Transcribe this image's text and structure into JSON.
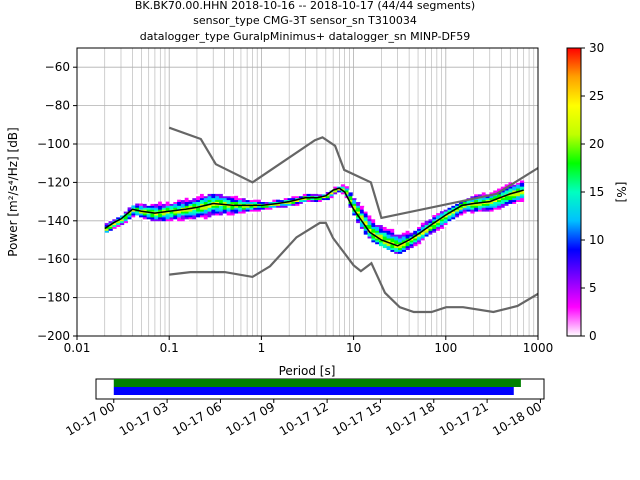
{
  "chart_data": [
    {
      "type": "probabilistic_psd",
      "title_lines": [
        "BK.BK70.00.HHN   2018-10-16 -- 2018-10-17  (44/44 segments)",
        "sensor_type CMG-3T sensor_sn T310034",
        "datalogger_type GuralpMinimus+ datalogger_sn MINP-DF59"
      ],
      "xlabel": "Period [s]",
      "ylabel": "Power [m²/s⁴/Hz] [dB]",
      "x_scale": "log",
      "xlim": [
        0.01,
        1000
      ],
      "ylim": [
        -200,
        -50
      ],
      "x_ticks": [
        0.01,
        0.1,
        1,
        10,
        100,
        1000
      ],
      "x_tick_labels": [
        "0.01",
        "0.1",
        "1",
        "10",
        "100",
        "1000"
      ],
      "y_ticks": [
        -200,
        -180,
        -160,
        -140,
        -120,
        -100,
        -80,
        -60
      ],
      "grid": true,
      "colorbar": {
        "label": "[%]",
        "range": [
          0,
          30
        ],
        "ticks": [
          0,
          5,
          10,
          15,
          20,
          25,
          30
        ],
        "colormap": [
          "#ffffff",
          "#ff00ff",
          "#8000ff",
          "#0000ff",
          "#00c0ff",
          "#00ffc0",
          "#00ff00",
          "#c0ff00",
          "#ffff00",
          "#ffa000",
          "#ff0000"
        ]
      },
      "noise_models": [
        {
          "name": "NHNM",
          "color": "#666666",
          "x": [
            0.1,
            0.22,
            0.32,
            0.8,
            3.8,
            4.6,
            6.3,
            7.9,
            15.4,
            20,
            354.8,
            1000
          ],
          "y": [
            -91.5,
            -97.4,
            -110.5,
            -120,
            -98,
            -96.5,
            -101,
            -113.5,
            -120,
            -138.5,
            -126,
            -112.5
          ]
        },
        {
          "name": "NLNM",
          "color": "#666666",
          "x": [
            0.1,
            0.17,
            0.4,
            0.8,
            1.24,
            2.4,
            4.3,
            5.0,
            6.0,
            10,
            12,
            15.6,
            21.9,
            31.6,
            45,
            70,
            101,
            154,
            328,
            600,
            1000
          ],
          "y": [
            -168,
            -166.7,
            -166.7,
            -169.2,
            -163.7,
            -148.6,
            -141.1,
            -141.1,
            -149,
            -163.2,
            -166.2,
            -162.1,
            -177.5,
            -185,
            -187.5,
            -187.5,
            -185,
            -185,
            -187.5,
            -184.4,
            -178
          ]
        }
      ],
      "mode_line": {
        "color": "#000000",
        "x": [
          0.02,
          0.025,
          0.03,
          0.04,
          0.05,
          0.07,
          0.1,
          0.15,
          0.2,
          0.3,
          0.5,
          0.8,
          1,
          1.5,
          2,
          3,
          4,
          5,
          6,
          7,
          8,
          10,
          15,
          20,
          30,
          40,
          50,
          70,
          100,
          150,
          200,
          300,
          500,
          700
        ],
        "y": [
          -144,
          -141,
          -139,
          -134,
          -135,
          -136,
          -135,
          -134,
          -133,
          -131,
          -132,
          -132,
          -132,
          -131,
          -130,
          -128,
          -128,
          -127,
          -124,
          -123,
          -125,
          -134,
          -146,
          -150,
          -153,
          -150,
          -147,
          -142,
          -137,
          -132,
          -131,
          -130,
          -126,
          -124
        ]
      },
      "psd_band": {
        "x": [
          0.02,
          0.025,
          0.03,
          0.04,
          0.05,
          0.07,
          0.1,
          0.15,
          0.2,
          0.3,
          0.5,
          0.8,
          1,
          1.5,
          2,
          3,
          4,
          5,
          6,
          7,
          8,
          10,
          15,
          20,
          30,
          40,
          50,
          70,
          100,
          150,
          200,
          300,
          500,
          700
        ],
        "y_high": [
          -140,
          -138,
          -135,
          -132,
          -131,
          -130,
          -130,
          -128,
          -126,
          -126,
          -127,
          -129,
          -130,
          -129,
          -127,
          -126,
          -126,
          -125,
          -122,
          -121,
          -122,
          -128,
          -136,
          -138,
          -144,
          -145,
          -142,
          -138,
          -133,
          -129,
          -125,
          -124,
          -120,
          -119
        ],
        "y_low": [
          -146,
          -143,
          -141,
          -138,
          -139,
          -140,
          -140,
          -139,
          -138,
          -139,
          -136,
          -135,
          -134,
          -133,
          -132,
          -130,
          -130,
          -129,
          -126,
          -125,
          -128,
          -140,
          -150,
          -153,
          -157,
          -154,
          -151,
          -147,
          -142,
          -136,
          -135,
          -134,
          -132,
          -129
        ]
      }
    },
    {
      "type": "timeline",
      "x_tick_labels": [
        "10-17 00",
        "10-17 03",
        "10-17 06",
        "10-17 09",
        "10-17 12",
        "10-17 15",
        "10-17 18",
        "10-17 21",
        "10-18 00"
      ],
      "xlim_hours": [
        -1,
        24.2
      ],
      "bars": [
        {
          "color": "#008000",
          "start_hour": 0,
          "end_hour": 22.9
        },
        {
          "color": "#0000ff",
          "start_hour": 0,
          "end_hour": 22.5
        }
      ]
    }
  ]
}
